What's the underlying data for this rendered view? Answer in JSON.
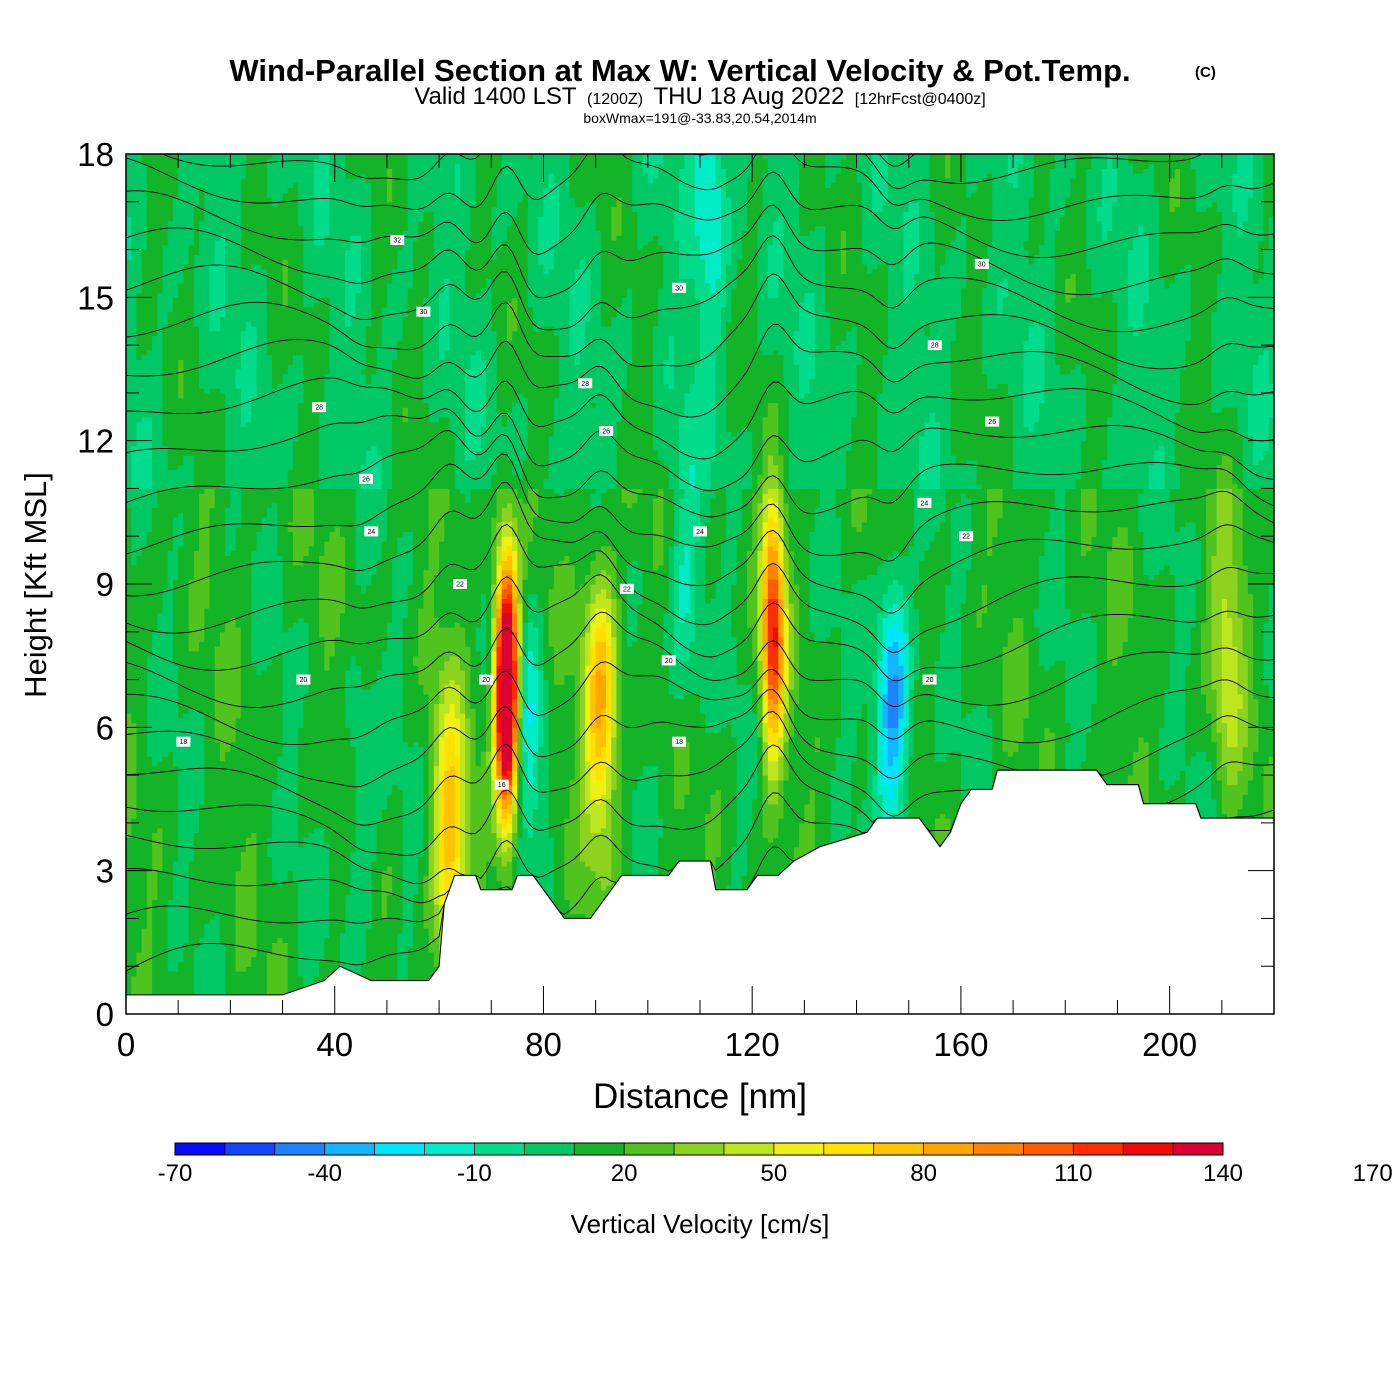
{
  "header": {
    "title": "Wind-Parallel Section at Max W: Vertical Velocity & Pot.Temp.",
    "copyright": "(C)",
    "valid_prefix": "Valid 1400 LST",
    "valid_utc": "(1200Z)",
    "valid_date": "THU 18 Aug 2022",
    "forecast": "[12hrFcst@0400z]",
    "box_info": "boxWmax=191@-33.83,20.54,2014m"
  },
  "chart_data": {
    "type": "heatmap",
    "xlabel": "Distance [nm]",
    "ylabel": "Height [Kft MSL]",
    "xlim": [
      0,
      220
    ],
    "ylim": [
      0,
      18
    ],
    "x_ticks": [
      0,
      40,
      80,
      120,
      160,
      200
    ],
    "y_ticks": [
      0,
      3,
      6,
      9,
      12,
      15,
      18
    ],
    "colorbar": {
      "label": "Vertical Velocity [cm/s]",
      "min": -70,
      "max": 190,
      "step": 10,
      "tick_labels": [
        "-70",
        "-40",
        "-10",
        "20",
        "50",
        "80",
        "110",
        "140",
        "170"
      ],
      "colors": [
        "#0a0aff",
        "#1446ff",
        "#1e82ff",
        "#14b4ff",
        "#00e6ff",
        "#00ebc8",
        "#00dc8c",
        "#00c864",
        "#14b428",
        "#50c31e",
        "#8cd21e",
        "#bee61e",
        "#f0f014",
        "#ffe100",
        "#ffc300",
        "#ffa500",
        "#ff8200",
        "#ff5a00",
        "#ff2d00",
        "#f00a0a",
        "#dc0032"
      ]
    },
    "terrain": [
      [
        0,
        0.4
      ],
      [
        30,
        0.4
      ],
      [
        38,
        0.7
      ],
      [
        41,
        1.0
      ],
      [
        47,
        0.7
      ],
      [
        58,
        0.7
      ],
      [
        60,
        1.0
      ],
      [
        61,
        2.3
      ],
      [
        63,
        2.9
      ],
      [
        67,
        2.9
      ],
      [
        68,
        2.6
      ],
      [
        74,
        2.6
      ],
      [
        75,
        2.9
      ],
      [
        78,
        2.9
      ],
      [
        80,
        2.6
      ],
      [
        82,
        2.3
      ],
      [
        84,
        2.0
      ],
      [
        89,
        2.0
      ],
      [
        91,
        2.3
      ],
      [
        93,
        2.6
      ],
      [
        95,
        2.9
      ],
      [
        104,
        2.9
      ],
      [
        106,
        3.2
      ],
      [
        112,
        3.2
      ],
      [
        113,
        2.6
      ],
      [
        119,
        2.6
      ],
      [
        121,
        2.9
      ],
      [
        125,
        2.9
      ],
      [
        128,
        3.2
      ],
      [
        133,
        3.5
      ],
      [
        142,
        3.8
      ],
      [
        144,
        4.1
      ],
      [
        152,
        4.1
      ],
      [
        154,
        3.8
      ],
      [
        156,
        3.5
      ],
      [
        158,
        3.8
      ],
      [
        160,
        4.4
      ],
      [
        162,
        4.7
      ],
      [
        166,
        4.7
      ],
      [
        167,
        5.1
      ],
      [
        186,
        5.1
      ],
      [
        188,
        4.8
      ],
      [
        194,
        4.8
      ],
      [
        195,
        4.4
      ],
      [
        205,
        4.4
      ],
      [
        206,
        4.1
      ],
      [
        220,
        4.1
      ]
    ],
    "updrafts": [
      {
        "x": 73,
        "z": 6.8,
        "w": 191
      },
      {
        "x": 124,
        "z": 8.0,
        "w": 105
      },
      {
        "x": 91,
        "z": 6.5,
        "w": 68
      },
      {
        "x": 62,
        "z": 3.8,
        "w": 62
      },
      {
        "x": 147,
        "z": 6.5,
        "w": -58
      },
      {
        "x": 77,
        "z": 6.0,
        "w": -30
      },
      {
        "x": 45,
        "z": 4.0,
        "w": -18
      },
      {
        "x": 107,
        "z": 9.0,
        "w": -25
      },
      {
        "x": 112,
        "z": 17.0,
        "w": -32
      },
      {
        "x": 211,
        "z": 7.5,
        "w": 30
      }
    ],
    "isentrope_labels": [
      {
        "x": 52,
        "z": 16.2,
        "text": "32"
      },
      {
        "x": 57,
        "z": 14.7,
        "text": "30"
      },
      {
        "x": 106,
        "z": 15.2,
        "text": "30"
      },
      {
        "x": 164,
        "z": 15.7,
        "text": "30"
      },
      {
        "x": 37,
        "z": 12.7,
        "text": "28"
      },
      {
        "x": 88,
        "z": 13.2,
        "text": "28"
      },
      {
        "x": 155,
        "z": 14.0,
        "text": "28"
      },
      {
        "x": 46,
        "z": 11.2,
        "text": "26"
      },
      {
        "x": 92,
        "z": 12.2,
        "text": "26"
      },
      {
        "x": 166,
        "z": 12.4,
        "text": "26"
      },
      {
        "x": 47,
        "z": 10.1,
        "text": "24"
      },
      {
        "x": 110,
        "z": 10.1,
        "text": "24"
      },
      {
        "x": 153,
        "z": 10.7,
        "text": "24"
      },
      {
        "x": 64,
        "z": 9.0,
        "text": "22"
      },
      {
        "x": 96,
        "z": 8.9,
        "text": "22"
      },
      {
        "x": 161,
        "z": 10.0,
        "text": "22"
      },
      {
        "x": 34,
        "z": 7.0,
        "text": "20"
      },
      {
        "x": 69,
        "z": 7.0,
        "text": "20"
      },
      {
        "x": 104,
        "z": 7.4,
        "text": "20"
      },
      {
        "x": 154,
        "z": 7.0,
        "text": "20"
      },
      {
        "x": 11,
        "z": 5.7,
        "text": "18"
      },
      {
        "x": 106,
        "z": 5.7,
        "text": "18"
      },
      {
        "x": 72,
        "z": 4.8,
        "text": "16"
      }
    ]
  }
}
